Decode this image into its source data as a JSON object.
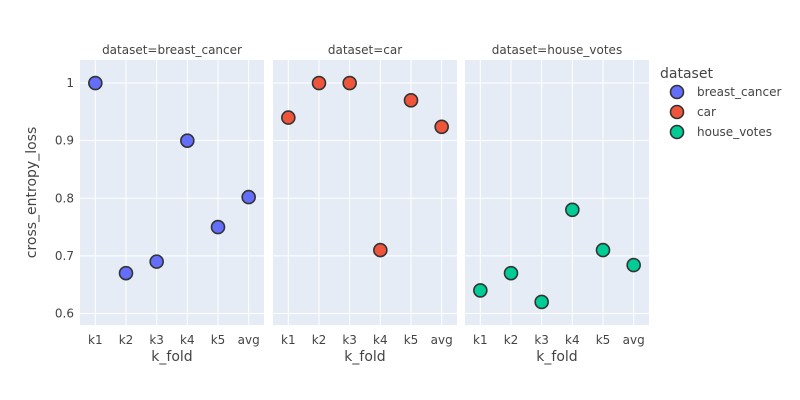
{
  "chart_data": {
    "type": "scatter",
    "facet_label": "dataset",
    "xlabel": "k_fold",
    "ylabel": "cross_entropy_loss",
    "categories": [
      "k1",
      "k2",
      "k3",
      "k4",
      "k5",
      "avg"
    ],
    "ylim": [
      0.58,
      1.04
    ],
    "yticks": [
      0.6,
      0.7,
      0.8,
      0.9,
      1
    ],
    "ytick_labels": [
      "0.6",
      "0.7",
      "0.8",
      "0.9",
      "1"
    ],
    "grid": true,
    "legend": {
      "title": "dataset",
      "placement": "top-right",
      "entries": [
        "breast_cancer",
        "car",
        "house_votes"
      ]
    },
    "series": [
      {
        "name": "breast_cancer",
        "facet_title": "dataset=breast_cancer",
        "color": "#636efa",
        "values": [
          1.0,
          0.67,
          0.69,
          0.9,
          0.75,
          0.802
        ]
      },
      {
        "name": "car",
        "facet_title": "dataset=car",
        "color": "#ef553b",
        "values": [
          0.94,
          1.0,
          1.0,
          0.71,
          0.97,
          0.924
        ]
      },
      {
        "name": "house_votes",
        "facet_title": "dataset=house_votes",
        "color": "#00cc96",
        "values": [
          0.64,
          0.67,
          0.62,
          0.78,
          0.71,
          0.684
        ]
      }
    ]
  }
}
